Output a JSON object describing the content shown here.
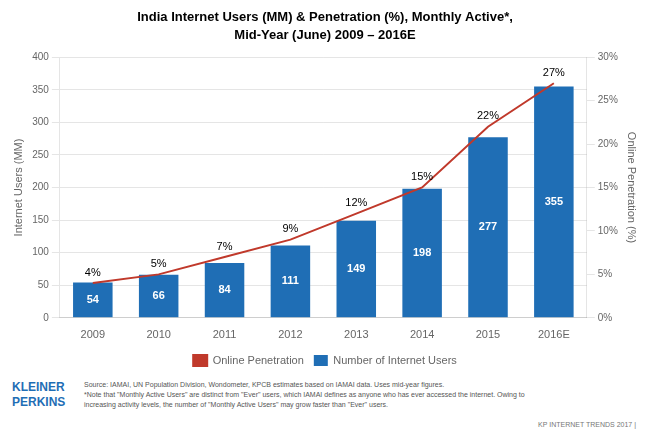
{
  "chart_data": {
    "type": "bar",
    "title": "India Internet Users (MM) & Penetration (%), Monthly Active*,",
    "subtitle": "Mid-Year (June) 2009 – 2016E",
    "categories": [
      "2009",
      "2010",
      "2011",
      "2012",
      "2013",
      "2014",
      "2015",
      "2016E"
    ],
    "series": [
      {
        "name": "Number of Internet Users",
        "type": "bar",
        "color": "#1f6eb5",
        "values": [
          54,
          66,
          84,
          111,
          149,
          198,
          277,
          355
        ]
      },
      {
        "name": "Online Penetration",
        "type": "line",
        "color": "#c0392b",
        "axis": "y2",
        "values": [
          4,
          5,
          7,
          9,
          12,
          15,
          22,
          27
        ],
        "value_labels": [
          "4%",
          "5%",
          "7%",
          "9%",
          "12%",
          "15%",
          "22%",
          "27%"
        ]
      }
    ],
    "ylabel": "Internet Users (MM)",
    "y2label": "Online Penetration (%)",
    "ylim": [
      0,
      400
    ],
    "yticks": [
      0,
      50,
      100,
      150,
      200,
      250,
      300,
      350,
      400
    ],
    "y2lim": [
      0,
      30
    ],
    "y2ticks": [
      {
        "value": 0,
        "label": "0%"
      },
      {
        "value": 5,
        "label": "5%"
      },
      {
        "value": 10,
        "label": "10%"
      },
      {
        "value": 15,
        "label": "15%"
      },
      {
        "value": 20,
        "label": "20%"
      },
      {
        "value": 25,
        "label": "25%"
      },
      {
        "value": 30,
        "label": "30%"
      }
    ],
    "grid": true,
    "legend": "bottom",
    "data_labels": true,
    "annotations": [
      "Source: IAMAI, UN Population Division, Wondometer, KPCB estimates based on IAMAI data. Uses mid-year figures.",
      "*Note that \"Monthly Active Users\" are distinct from \"Ever\" users, which IAMAI defines as anyone who has ever accessed the internet. Owing to",
      "increasing activity levels, the number of \"Monthly Active Users\" may grow faster than \"Ever\" users.",
      "KP INTERNET TRENDS 2017  |",
      "KLEINER",
      "PERKINS"
    ]
  }
}
